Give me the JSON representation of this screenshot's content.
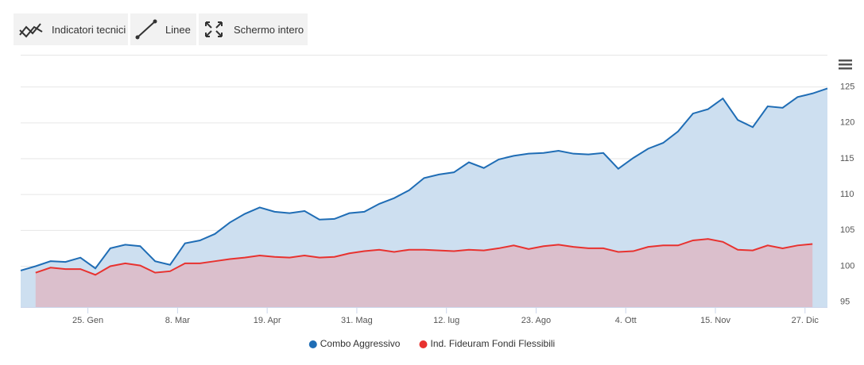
{
  "toolbar": [
    "Indicatori tecnici",
    "Linee",
    "Schermo intero"
  ],
  "chart_data": {
    "type": "area",
    "series": [
      {
        "name": "Combo Aggressivo",
        "color": "#1f6db5",
        "fill": "#cddff0",
        "values": [
          99.4,
          100.0,
          100.7,
          100.6,
          101.2,
          99.7,
          102.5,
          103.0,
          102.8,
          100.7,
          100.2,
          103.2,
          103.6,
          104.5,
          106.1,
          107.3,
          108.2,
          107.6,
          107.4,
          107.7,
          106.5,
          106.6,
          107.4,
          107.6,
          108.7,
          109.5,
          110.6,
          112.3,
          112.8,
          113.1,
          114.5,
          113.7,
          114.9,
          115.4,
          115.7,
          115.8,
          116.1,
          115.7,
          115.6,
          115.8,
          113.6,
          115.1,
          116.4,
          117.2,
          118.8,
          121.3,
          121.9,
          123.4,
          120.4,
          119.4,
          122.3,
          122.1,
          123.6,
          124.1,
          124.8
        ]
      },
      {
        "name": "Ind. Fideuram Fondi Flessibili",
        "color": "#e8322f",
        "fill": "#dbbfcc",
        "values": [
          null,
          99.1,
          99.8,
          99.6,
          99.6,
          98.8,
          100.0,
          100.4,
          100.1,
          99.1,
          99.3,
          100.4,
          100.4,
          100.7,
          101.0,
          101.2,
          101.5,
          101.3,
          101.2,
          101.5,
          101.2,
          101.3,
          101.8,
          102.1,
          102.3,
          102.0,
          102.3,
          102.3,
          102.2,
          102.1,
          102.3,
          102.2,
          102.5,
          102.9,
          102.4,
          102.8,
          103.0,
          102.7,
          102.5,
          102.5,
          102.0,
          102.1,
          102.7,
          102.9,
          102.9,
          103.6,
          103.8,
          103.4,
          102.3,
          102.2,
          102.9,
          102.5,
          102.9,
          103.1,
          null
        ]
      }
    ],
    "xlim": [
      0,
      54
    ],
    "xticks": [
      {
        "value": 4.5,
        "label": "25. Gen"
      },
      {
        "value": 10.5,
        "label": "8. Mar"
      },
      {
        "value": 16.5,
        "label": "19. Apr"
      },
      {
        "value": 22.5,
        "label": "31. Mag"
      },
      {
        "value": 28.5,
        "label": "12. lug"
      },
      {
        "value": 34.5,
        "label": "23. Ago"
      },
      {
        "value": 40.5,
        "label": "4. Ott"
      },
      {
        "value": 46.5,
        "label": "15. Nov"
      },
      {
        "value": 52.5,
        "label": "27. Dic"
      }
    ],
    "ylim": [
      94.3,
      129.5
    ],
    "yticks": [
      95,
      100,
      105,
      110,
      115,
      120,
      125
    ],
    "grid": true,
    "legend": "bottom"
  }
}
